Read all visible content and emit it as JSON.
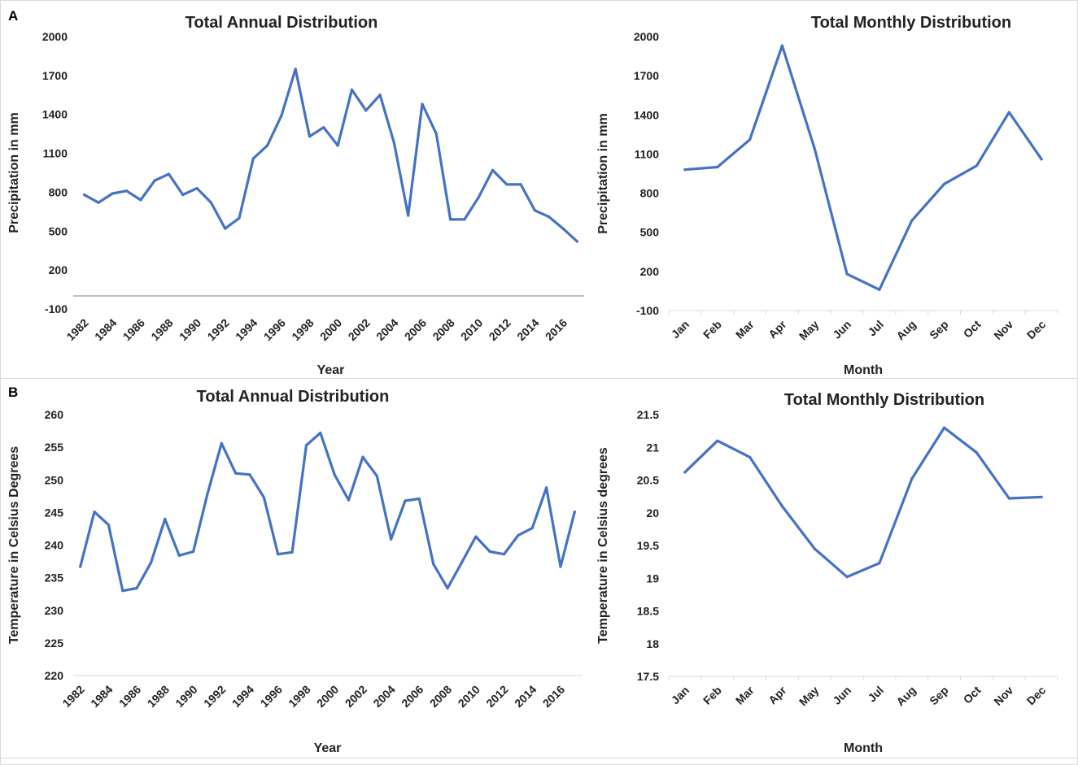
{
  "panels": {
    "a_label": "A",
    "b_label": "B"
  },
  "chart_data": [
    {
      "id": "annual-precip",
      "type": "line",
      "title": "Total Annual Distribution",
      "xlabel": "Year",
      "ylabel": "Precipitation in mm",
      "ylim": [
        -100,
        2000
      ],
      "yticks": [
        "2000",
        "1700",
        "1400",
        "1100",
        "800",
        "500",
        "200",
        "-100"
      ],
      "ytick_values": [
        2000,
        1700,
        1400,
        1100,
        800,
        500,
        200,
        -100
      ],
      "xticks": [
        "1982",
        "1984",
        "1986",
        "1988",
        "1990",
        "1992",
        "1994",
        "1996",
        "1998",
        "2000",
        "2002",
        "2004",
        "2006",
        "2008",
        "2010",
        "2012",
        "2014",
        "2016"
      ],
      "zero_line": true,
      "color": "#4472C4",
      "series": [
        {
          "name": "Precipitation",
          "x": [
            1982,
            1983,
            1984,
            1985,
            1986,
            1987,
            1988,
            1989,
            1990,
            1991,
            1992,
            1993,
            1994,
            1995,
            1996,
            1997,
            1998,
            1999,
            2000,
            2001,
            2002,
            2003,
            2004,
            2005,
            2006,
            2007,
            2008,
            2009,
            2010,
            2011,
            2012,
            2013,
            2014,
            2015,
            2016,
            2017
          ],
          "values": [
            780,
            720,
            790,
            810,
            740,
            890,
            940,
            780,
            830,
            720,
            520,
            600,
            1060,
            1160,
            1390,
            1750,
            1230,
            1300,
            1160,
            1590,
            1430,
            1550,
            1180,
            620,
            1480,
            1250,
            590,
            590,
            760,
            970,
            860,
            860,
            660,
            610,
            520,
            420
          ]
        }
      ]
    },
    {
      "id": "monthly-precip",
      "type": "line",
      "title": "Total Monthly Distribution",
      "xlabel": "Month",
      "ylabel": "Precipitation in mm",
      "ylim": [
        -100,
        2000
      ],
      "yticks": [
        "2000",
        "1700",
        "1400",
        "1100",
        "800",
        "500",
        "200",
        "-100"
      ],
      "ytick_values": [
        2000,
        1700,
        1400,
        1100,
        800,
        500,
        200,
        -100
      ],
      "categories": [
        "Jan",
        "Feb",
        "Mar",
        "Apr",
        "May",
        "Jun",
        "Jul",
        "Aug",
        "Sep",
        "Oct",
        "Nov",
        "Dec"
      ],
      "zero_line": false,
      "color": "#4472C4",
      "series": [
        {
          "name": "Precipitation",
          "values": [
            980,
            1000,
            1210,
            1930,
            1140,
            180,
            60,
            590,
            870,
            1010,
            1420,
            1060
          ]
        }
      ]
    },
    {
      "id": "annual-temp",
      "type": "line",
      "title": "Total Annual Distribution",
      "xlabel": "Year",
      "ylabel": "Temperature in Celsius Degrees",
      "ylim": [
        220,
        260
      ],
      "yticks": [
        "260",
        "255",
        "250",
        "245",
        "240",
        "235",
        "230",
        "225",
        "220"
      ],
      "ytick_values": [
        260,
        255,
        250,
        245,
        240,
        235,
        230,
        225,
        220
      ],
      "xticks": [
        "1982",
        "1984",
        "1986",
        "1988",
        "1990",
        "1992",
        "1994",
        "1996",
        "1998",
        "2000",
        "2002",
        "2004",
        "2006",
        "2008",
        "2010",
        "2012",
        "2014",
        "2016"
      ],
      "zero_line": false,
      "color": "#4472C4",
      "series": [
        {
          "name": "Temperature",
          "x": [
            1982,
            1983,
            1984,
            1985,
            1986,
            1987,
            1988,
            1989,
            1990,
            1991,
            1992,
            1993,
            1994,
            1995,
            1996,
            1997,
            1998,
            1999,
            2000,
            2001,
            2002,
            2003,
            2004,
            2005,
            2006,
            2007,
            2008,
            2009,
            2010,
            2011,
            2012,
            2013,
            2014,
            2015,
            2016,
            2017
          ],
          "values": [
            236.7,
            245.1,
            243.1,
            233.0,
            233.4,
            237.3,
            244.0,
            238.4,
            239.0,
            247.8,
            255.6,
            251.0,
            250.8,
            247.3,
            238.6,
            238.9,
            255.3,
            257.2,
            250.8,
            246.9,
            253.5,
            250.6,
            240.9,
            246.8,
            247.1,
            237.1,
            233.4,
            237.3,
            241.3,
            239.0,
            238.6,
            241.5,
            242.6,
            248.8,
            236.7,
            245.1
          ]
        }
      ]
    },
    {
      "id": "monthly-temp",
      "type": "line",
      "title": "Total Monthly Distribution",
      "xlabel": "Month",
      "ylabel": "Temperature in Celsius degrees",
      "ylim": [
        17.5,
        21.5
      ],
      "yticks": [
        "21.5",
        "21",
        "20.5",
        "20",
        "19.5",
        "19",
        "18.5",
        "18",
        "17.5"
      ],
      "ytick_values": [
        21.5,
        21,
        20.5,
        20,
        19.5,
        19,
        18.5,
        18,
        17.5
      ],
      "categories": [
        "Jan",
        "Feb",
        "Mar",
        "Apr",
        "May",
        "Jun",
        "Jul",
        "Aug",
        "Sep",
        "Oct",
        "Nov",
        "Dec"
      ],
      "zero_line": false,
      "color": "#4472C4",
      "series": [
        {
          "name": "Temperature",
          "values": [
            20.62,
            21.1,
            20.85,
            20.1,
            19.45,
            19.02,
            19.23,
            20.52,
            21.3,
            20.92,
            20.22,
            20.24
          ]
        }
      ]
    }
  ]
}
